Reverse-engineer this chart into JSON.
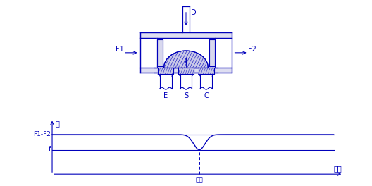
{
  "bg_color": "#ffffff",
  "line_color": "#0000bb",
  "fill_color": "#c8c8e8",
  "label_D": "D",
  "label_F1": "F1",
  "label_F2": "F2",
  "label_E": "E",
  "label_S": "S",
  "label_C": "C",
  "label_li": "力",
  "label_weizhi": "位置",
  "label_zhongjian": "中间",
  "label_F1F2": "F1-F2",
  "label_f": "f",
  "graph_F1F2_level": 0.73,
  "graph_f_level": 0.45
}
